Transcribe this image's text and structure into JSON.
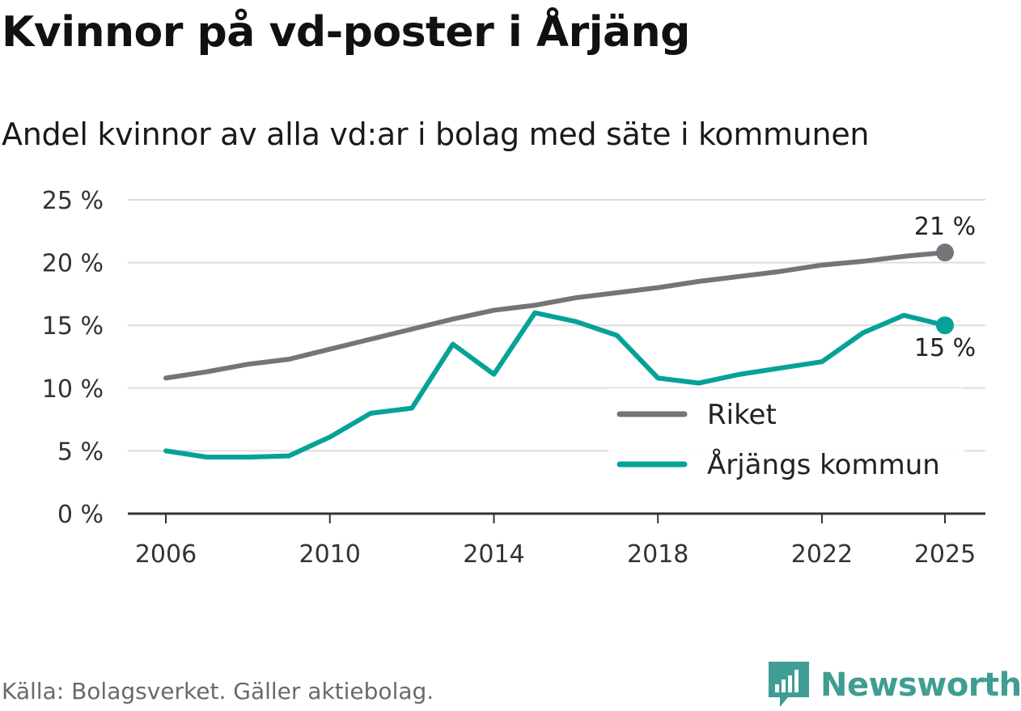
{
  "title": "Kvinnor på vd-poster i Årjäng",
  "subtitle": "Andel kvinnor av alla vd:ar i bolag med säte i kommunen",
  "source": "Källa: Bolagsverket. Gäller aktiebolag.",
  "brand": {
    "name": "Newsworthy",
    "icon": "newsworthy-logo-icon",
    "color": "#3f9d93"
  },
  "chart_data": {
    "type": "line",
    "x": [
      2006,
      2007,
      2008,
      2009,
      2010,
      2011,
      2012,
      2013,
      2014,
      2015,
      2016,
      2017,
      2018,
      2019,
      2020,
      2021,
      2022,
      2023,
      2024,
      2025
    ],
    "series": [
      {
        "name": "Riket",
        "color": "#75747a",
        "values": [
          10.8,
          11.3,
          11.9,
          12.3,
          13.1,
          13.9,
          14.7,
          15.5,
          16.2,
          16.6,
          17.2,
          17.6,
          18.0,
          18.5,
          18.9,
          19.3,
          19.8,
          20.1,
          20.5,
          20.8
        ],
        "end_label": "21 %"
      },
      {
        "name": "Årjängs kommun",
        "color": "#06a297",
        "values": [
          5.0,
          4.5,
          4.5,
          4.6,
          6.1,
          8.0,
          8.4,
          13.5,
          11.1,
          16.0,
          15.3,
          14.2,
          10.8,
          10.4,
          11.1,
          11.6,
          12.1,
          14.4,
          15.8,
          15.0
        ],
        "end_label": "15 %"
      }
    ],
    "x_ticks": [
      2006,
      2010,
      2014,
      2018,
      2022,
      2025
    ],
    "y_ticks": [
      0,
      5,
      10,
      15,
      20,
      25
    ],
    "y_tick_labels": [
      "0 %",
      "5 %",
      "10 %",
      "15 %",
      "20 %",
      "25 %"
    ],
    "ylim": [
      0,
      25
    ],
    "xlim": [
      2006,
      2025
    ],
    "grid": true,
    "legend_position": "bottom-right"
  }
}
